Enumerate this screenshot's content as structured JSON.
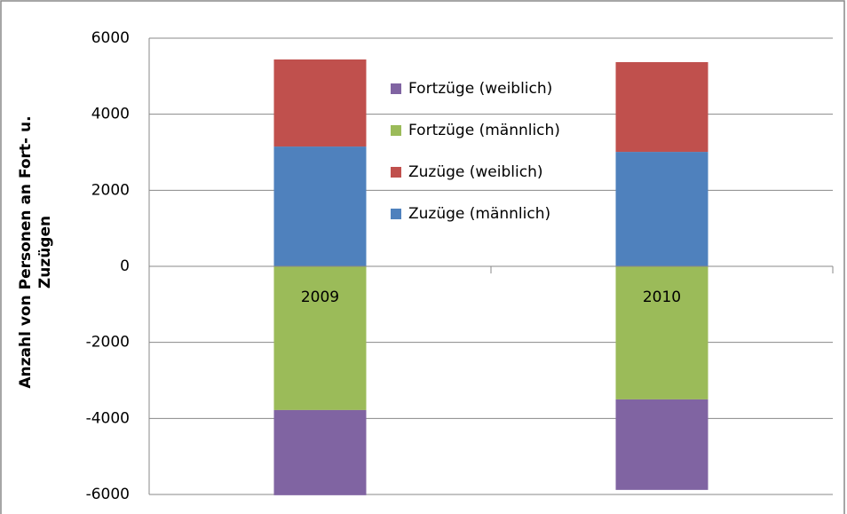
{
  "chart_data": {
    "type": "stacked_bar",
    "y_label": "Anzahl von Personen an Fort- u. Zuzügen",
    "categories": [
      "2009",
      "2010"
    ],
    "series": [
      {
        "name": "Zuzüge (männlich)",
        "color": "#4f81bd",
        "values": [
          3150,
          3010
        ]
      },
      {
        "name": "Zuzüge (weiblich)",
        "color": "#c0504d",
        "values": [
          2290,
          2360
        ]
      },
      {
        "name": "Fortzüge (männlich)",
        "color": "#9bbb59",
        "values": [
          -3780,
          -3500
        ]
      },
      {
        "name": "Fortzüge (weiblich)",
        "color": "#8064a2",
        "values": [
          -2240,
          -2380
        ]
      }
    ],
    "ylim": [
      -6000,
      6000
    ],
    "yticks": [
      -6000,
      -4000,
      -2000,
      0,
      2000,
      4000,
      6000
    ],
    "grid": true
  }
}
